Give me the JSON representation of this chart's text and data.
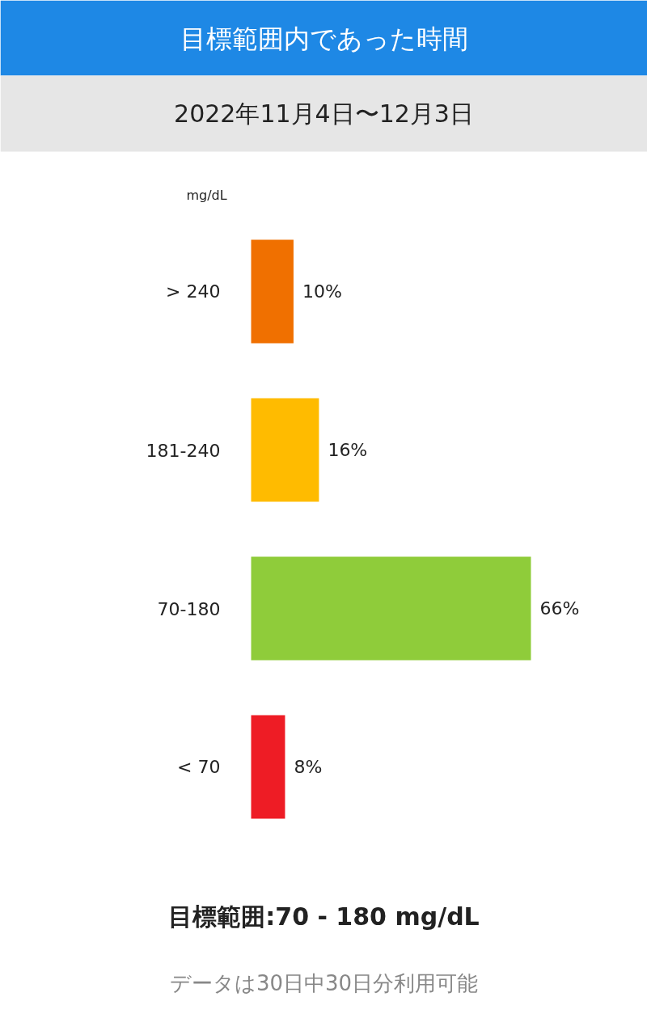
{
  "chart_data": {
    "type": "bar",
    "orientation": "horizontal",
    "title": "目標範囲内であった時間",
    "subtitle": "2022年11月4日〜12月3日",
    "ylabel": "mg/dL",
    "categories": [
      "> 240",
      "181-240",
      "70-180",
      "< 70"
    ],
    "values": [
      10,
      16,
      66,
      8
    ],
    "colors": [
      "#f07000",
      "#ffbb00",
      "#8fcc3a",
      "#ee1c25"
    ],
    "value_labels": [
      "10%",
      "16%",
      "66%",
      "8%"
    ],
    "annotations": [
      "目標範囲:70 - 180 mg/dL",
      "データは30日中30日分利用可能"
    ]
  }
}
